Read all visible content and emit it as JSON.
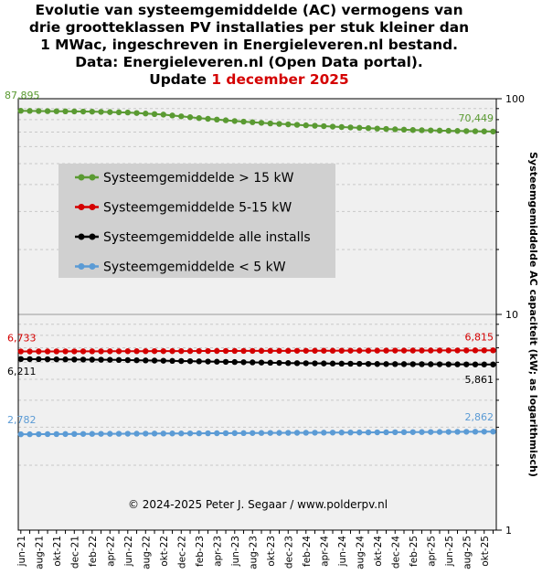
{
  "title": {
    "lines": [
      "Evolutie van systeemgemiddelde (AC) vermogens van",
      "drie grootteklassen PV installaties per stuk kleiner dan",
      "1 MWac, ingeschreven in Energieleveren.nl bestand.",
      "Data: Energieleveren.nl (Open Data portal)."
    ],
    "update_prefix": "Update ",
    "update_date": "1 december 2025"
  },
  "colors": {
    "green": "#5a9a32",
    "red": "#d40000",
    "black": "#000000",
    "blue": "#5b9bd5",
    "plot_bg": "#f0f0f0",
    "legend_bg": "#d0d0d0"
  },
  "chart_data": {
    "type": "line",
    "yscale": "log",
    "ylim": [
      1,
      100
    ],
    "ylabel": "Systeemgemiddelde AC capaciteit (kW; as logarithmisch)",
    "y_ticks": [
      "1",
      "10",
      "100"
    ],
    "x_tick_labels": [
      "jun-21",
      "aug-21",
      "okt-21",
      "dec-21",
      "feb-22",
      "apr-22",
      "jun-22",
      "aug-22",
      "okt-22",
      "dec-22",
      "feb-23",
      "apr-23",
      "jun-23",
      "aug-23",
      "okt-23",
      "dec-23",
      "feb-24",
      "apr-24",
      "jun-24",
      "aug-24",
      "okt-24",
      "dec-24",
      "feb-25",
      "apr-25",
      "jun-25",
      "aug-25",
      "okt-25"
    ],
    "x_start": "2021-06",
    "x_end": "2025-11",
    "legend_position": "upper-left",
    "series": [
      {
        "name": "Systeemgemiddelde > 15 kW",
        "color": "green",
        "first_label": "87,895",
        "last_label": "70,449",
        "anchors": [
          [
            0,
            87.895
          ],
          [
            8,
            87.1
          ],
          [
            12,
            86.3
          ],
          [
            16,
            84.4
          ],
          [
            20,
            81.3
          ],
          [
            24,
            78.8
          ],
          [
            28,
            76.8
          ],
          [
            32,
            75.3
          ],
          [
            36,
            73.9
          ],
          [
            40,
            72.7
          ],
          [
            44,
            71.6
          ],
          [
            48,
            71.0
          ],
          [
            53,
            70.449
          ]
        ]
      },
      {
        "name": "Systeemgemiddelde 5-15 kW",
        "color": "red",
        "first_label": "6,733",
        "last_label": "6,815",
        "anchors": [
          [
            0,
            6.733
          ],
          [
            26,
            6.775
          ],
          [
            53,
            6.815
          ]
        ]
      },
      {
        "name": "Systeemgemiddelde alle installs",
        "color": "black",
        "first_label": "6,211",
        "last_label": "5,861",
        "anchors": [
          [
            0,
            6.211
          ],
          [
            10,
            6.16
          ],
          [
            20,
            6.06
          ],
          [
            30,
            5.95
          ],
          [
            40,
            5.89
          ],
          [
            53,
            5.861
          ]
        ]
      },
      {
        "name": "Systeemgemiddelde < 5 kW",
        "color": "blue",
        "first_label": "2,782",
        "last_label": "2,862",
        "anchors": [
          [
            0,
            2.782
          ],
          [
            20,
            2.81
          ],
          [
            40,
            2.84
          ],
          [
            53,
            2.862
          ]
        ]
      }
    ],
    "annotation": "© 2024-2025 Peter J. Segaar / www.polderpv.nl"
  }
}
